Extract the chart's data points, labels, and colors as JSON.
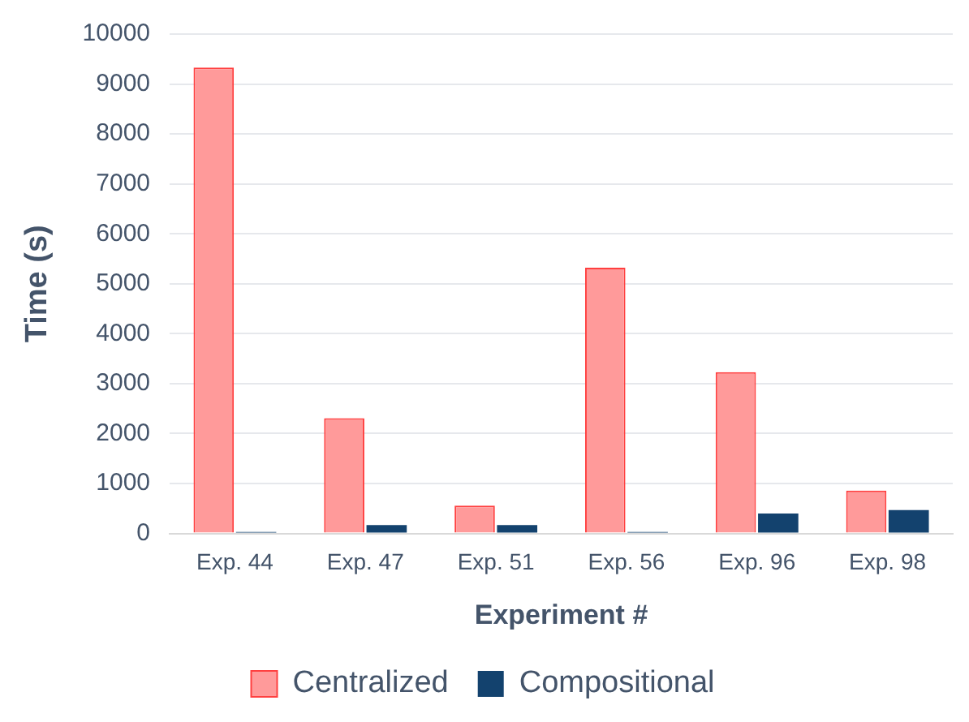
{
  "chart_data": {
    "type": "bar",
    "xlabel": "Experiment #",
    "ylabel": "Time (s)",
    "categories": [
      "Exp. 44",
      "Exp. 47",
      "Exp. 51",
      "Exp. 56",
      "Exp. 96",
      "Exp. 98"
    ],
    "series": [
      {
        "name": "Centralized",
        "color": "#ff9a9a",
        "values": [
          9330,
          2310,
          560,
          5320,
          3230,
          860
        ]
      },
      {
        "name": "Compositional",
        "color": "#13426e",
        "values": [
          30,
          170,
          170,
          30,
          400,
          470
        ]
      }
    ],
    "ylim": [
      0,
      10000
    ],
    "yticks": [
      0,
      1000,
      2000,
      3000,
      4000,
      5000,
      6000,
      7000,
      8000,
      9000,
      10000
    ],
    "grid": "y",
    "legend": "bottom"
  }
}
